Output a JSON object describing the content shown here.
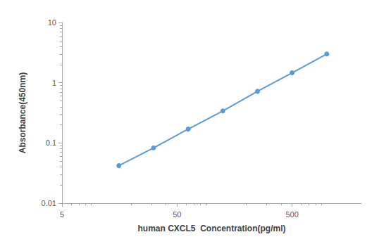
{
  "chart_data": {
    "type": "line",
    "x_label": "human CXCL5  Concentration(pg/ml)",
    "y_label": "Absorbance(450nm)",
    "x": [
      15.6,
      31.25,
      62.5,
      125,
      250,
      500,
      1000
    ],
    "values": [
      0.042,
      0.083,
      0.17,
      0.34,
      0.72,
      1.46,
      3.0
    ],
    "color": "#5b9bd5",
    "marker": "circle",
    "log": true,
    "grid": false,
    "xlim": [
      5,
      2000
    ],
    "xticks": [
      5,
      50,
      500
    ],
    "ylim": [
      0.01,
      10
    ],
    "yticks": [
      0.01,
      0.1,
      1,
      10
    ]
  }
}
